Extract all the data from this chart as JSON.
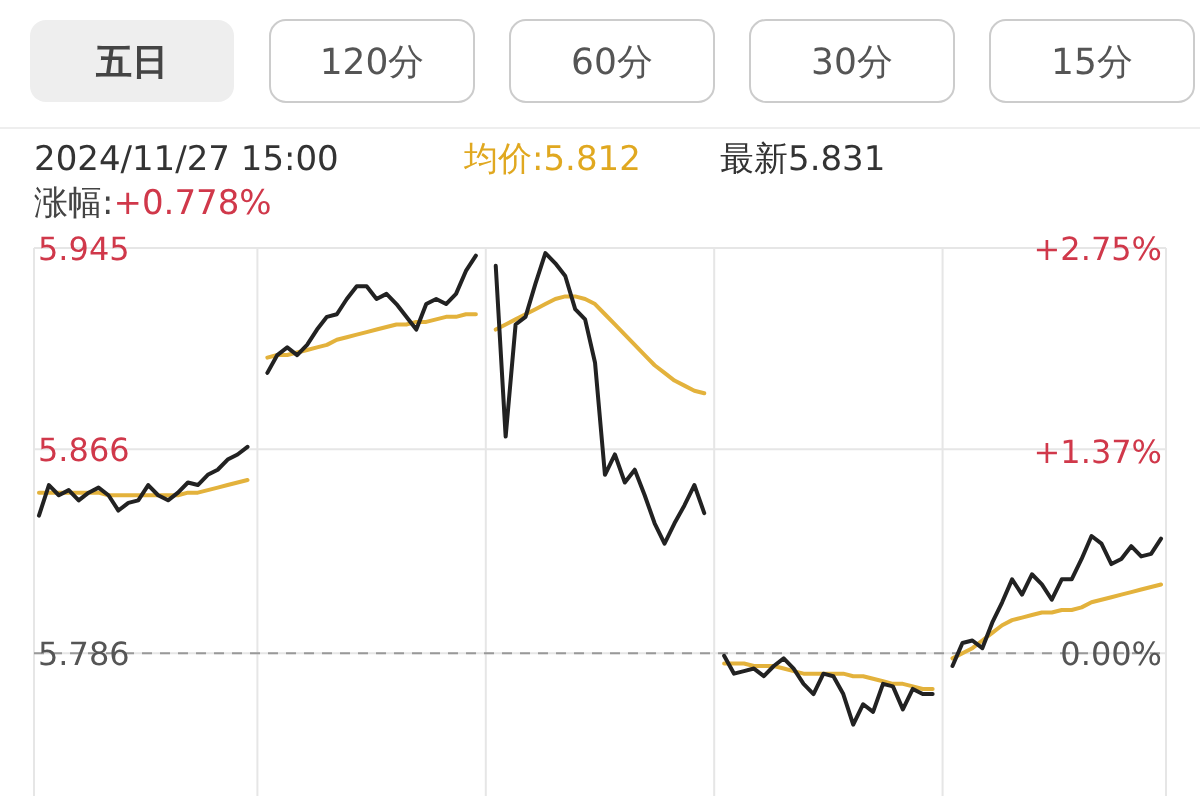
{
  "chart_data": {
    "type": "line",
    "title": "2024/11/27 15:00",
    "annotations": [
      "五日",
      "120分",
      "60分",
      "30分",
      "15分",
      "均价:5.812",
      "最新5.831",
      "涨幅:",
      "+0.778%"
    ],
    "categories": [
      null,
      null,
      null,
      null,
      null,
      null,
      null,
      null,
      null,
      null,
      null,
      null,
      null,
      null,
      null,
      null,
      null,
      null,
      null,
      null,
      null,
      null,
      null,
      null,
      null,
      null,
      null,
      null,
      null,
      null,
      null,
      null,
      null,
      null,
      null,
      null,
      null,
      null,
      null,
      null,
      null,
      null,
      null,
      null,
      null,
      null,
      null,
      null,
      null,
      null,
      null,
      null,
      null,
      null,
      null,
      null,
      null,
      null,
      null,
      null,
      null,
      null,
      null,
      null,
      null,
      null,
      null,
      null,
      null,
      null,
      null,
      null,
      null,
      null,
      null,
      null,
      null,
      null,
      null,
      null,
      null,
      null,
      null,
      null,
      null,
      null,
      null,
      null,
      null,
      null,
      null,
      null,
      null,
      null,
      null,
      null,
      null,
      null,
      null,
      null,
      null,
      null,
      null,
      null,
      null,
      null,
      null,
      null,
      null,
      null,
      null,
      null,
      null,
      null
    ],
    "ylim": [
      5.73,
      5.945
    ],
    "yticks": [
      5.945,
      5.866,
      5.786
    ],
    "y2lim": [
      -0.97,
      2.75
    ],
    "y2ticks": [
      {
        "value": 2.75,
        "label": "+2.75%"
      },
      {
        "value": 1.37,
        "label": "+1.37%"
      },
      {
        "value": 0,
        "label": "0.00%"
      }
    ],
    "grid": true,
    "ref_lines": [
      {
        "axis": "y",
        "value": 5.786,
        "color": "#999999",
        "line_style": "dashed"
      }
    ],
    "series": [
      {
        "color": "#222222",
        "values": [
          5.84,
          5.852,
          5.848,
          5.85,
          5.846,
          5.849,
          5.851,
          5.848,
          5.842,
          5.845,
          5.846,
          5.852,
          5.848,
          5.846,
          5.849,
          5.853,
          5.852,
          5.856,
          5.858,
          5.862,
          5.864,
          5.867,
          null,
          5.896,
          5.903,
          5.906,
          5.903,
          5.907,
          5.913,
          5.918,
          5.919,
          5.925,
          5.93,
          5.93,
          5.925,
          5.927,
          5.923,
          5.918,
          5.913,
          5.923,
          5.925,
          5.923,
          5.927,
          5.936,
          5.942,
          null,
          5.938,
          5.871,
          5.915,
          5.918,
          5.931,
          5.943,
          5.939,
          5.934,
          5.921,
          5.917,
          5.9,
          5.856,
          5.864,
          5.853,
          5.858,
          5.848,
          5.837,
          5.829,
          5.837,
          5.844,
          5.852,
          5.841,
          null,
          5.785,
          5.778,
          5.779,
          5.78,
          5.777,
          5.781,
          5.784,
          5.78,
          5.774,
          5.77,
          5.778,
          5.777,
          5.77,
          5.758,
          5.766,
          5.763,
          5.774,
          5.773,
          5.764,
          5.772,
          5.77,
          5.77,
          null,
          5.781,
          5.79,
          5.791,
          5.788,
          5.798,
          5.806,
          5.815,
          5.809,
          5.817,
          5.813,
          5.807,
          5.815,
          5.815,
          5.823,
          5.832,
          5.829,
          5.821,
          5.823,
          5.828,
          5.824,
          5.825,
          5.831
        ]
      },
      {
        "color": "#e3b23c",
        "values": [
          5.849,
          5.849,
          5.849,
          5.849,
          5.849,
          5.849,
          5.849,
          5.848,
          5.848,
          5.848,
          5.848,
          5.848,
          5.848,
          5.848,
          5.848,
          5.849,
          5.849,
          5.85,
          5.851,
          5.852,
          5.853,
          5.854,
          null,
          5.902,
          5.903,
          5.903,
          5.904,
          5.905,
          5.906,
          5.907,
          5.909,
          5.91,
          5.911,
          5.912,
          5.913,
          5.914,
          5.915,
          5.915,
          5.916,
          5.916,
          5.917,
          5.918,
          5.918,
          5.919,
          5.919,
          null,
          5.913,
          5.915,
          5.917,
          5.919,
          5.921,
          5.923,
          5.925,
          5.926,
          5.926,
          5.925,
          5.923,
          5.919,
          5.915,
          5.911,
          5.907,
          5.903,
          5.899,
          5.896,
          5.893,
          5.891,
          5.889,
          5.888,
          null,
          5.782,
          5.782,
          5.782,
          5.781,
          5.781,
          5.781,
          5.78,
          5.779,
          5.778,
          5.778,
          5.778,
          5.778,
          5.778,
          5.777,
          5.777,
          5.776,
          5.775,
          5.774,
          5.774,
          5.773,
          5.772,
          5.772,
          null,
          5.784,
          5.786,
          5.788,
          5.791,
          5.794,
          5.797,
          5.799,
          5.8,
          5.801,
          5.802,
          5.802,
          5.803,
          5.803,
          5.804,
          5.806,
          5.807,
          5.808,
          5.809,
          5.81,
          5.811,
          5.812,
          5.813
        ]
      }
    ]
  }
}
